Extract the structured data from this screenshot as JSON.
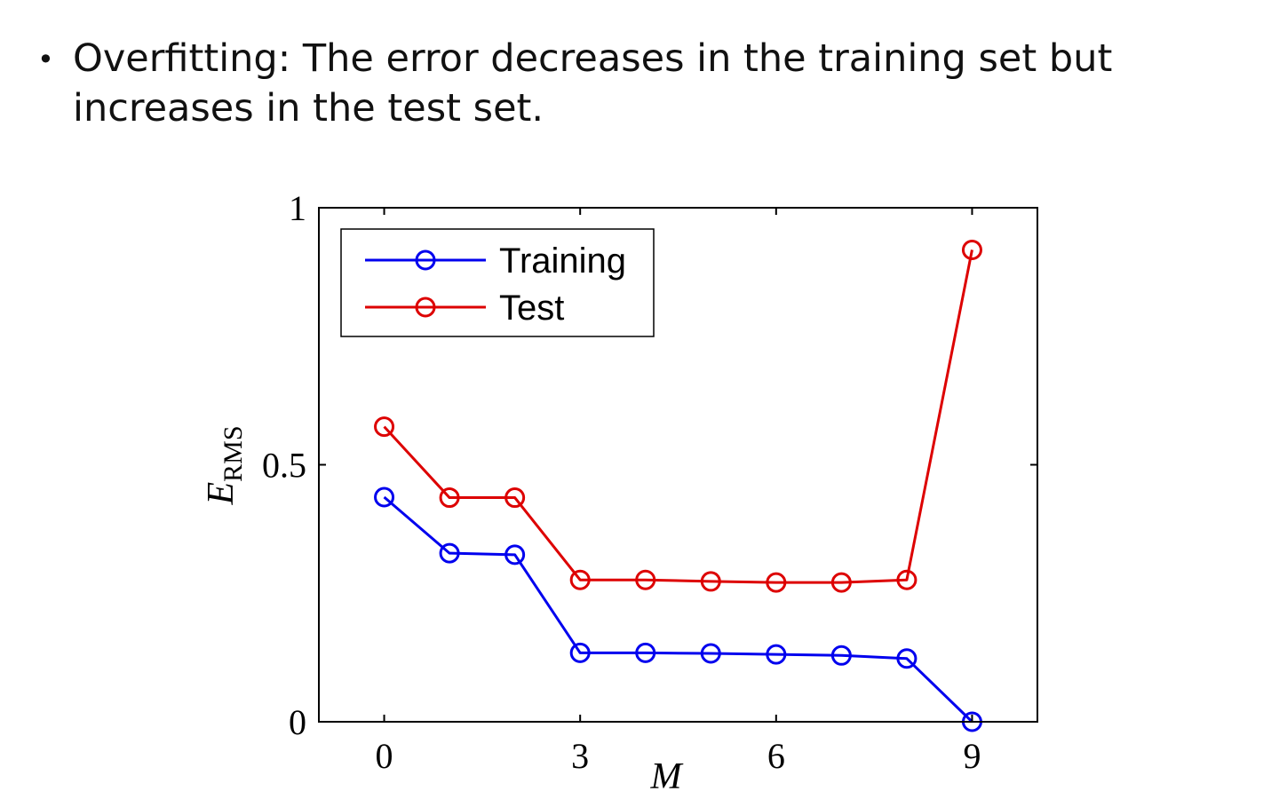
{
  "slide": {
    "bullet_glyph": "•",
    "text": "Overfitting: The error decreases in the training set but increases in the test set."
  },
  "chart_data": {
    "type": "line",
    "x": [
      0,
      1,
      2,
      3,
      4,
      5,
      6,
      7,
      8,
      9
    ],
    "series": [
      {
        "name": "Training",
        "color": "#0000ee",
        "values": [
          0.437,
          0.328,
          0.325,
          0.134,
          0.134,
          0.133,
          0.131,
          0.129,
          0.123,
          0.0
        ]
      },
      {
        "name": "Test",
        "color": "#dd0000",
        "values": [
          0.574,
          0.436,
          0.436,
          0.276,
          0.276,
          0.273,
          0.271,
          0.271,
          0.276,
          0.918
        ]
      }
    ],
    "xlim": [
      -1,
      10
    ],
    "ylim": [
      0,
      1
    ],
    "x_ticks": [
      0,
      3,
      6,
      9
    ],
    "x_tick_labels": [
      "0",
      "3",
      "6",
      "9"
    ],
    "y_ticks": [
      0,
      0.5,
      1
    ],
    "y_tick_labels": [
      "0",
      "0.5",
      "1"
    ],
    "xlabel": "M",
    "ylabel_main": "E",
    "ylabel_sub": "RMS",
    "legend_position": "top-left",
    "grid": false
  }
}
